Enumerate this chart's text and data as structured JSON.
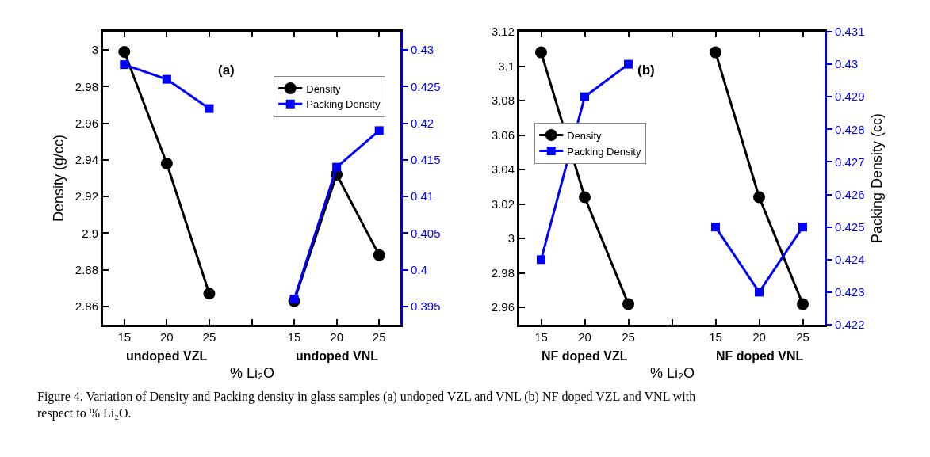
{
  "chart_data": [
    {
      "type": "line",
      "categories": [
        "15",
        "20",
        "25",
        null,
        "15",
        "20",
        "25"
      ],
      "xlabel": "% Li₂O",
      "ylabel": "Density (g/cc)",
      "ylim": [
        2.85,
        3.01
      ],
      "yticks": [
        2.86,
        2.88,
        2.9,
        2.92,
        2.94,
        2.96,
        2.98,
        3.0
      ],
      "y2lim": [
        0.3925,
        0.4325
      ],
      "y2ticks": [
        0.395,
        0.4,
        0.405,
        0.41,
        0.415,
        0.42,
        0.425,
        0.43
      ],
      "series": [
        {
          "name": "Density",
          "color": "#000000",
          "marker": "circle",
          "values": [
            2.999,
            2.938,
            2.867,
            null,
            2.863,
            2.932,
            2.888
          ]
        },
        {
          "name": "Packing Density",
          "color": "#0000ff",
          "marker": "square",
          "axis": "y2",
          "values": [
            0.428,
            0.426,
            0.422,
            null,
            0.396,
            0.414,
            0.419
          ]
        }
      ],
      "legend": "top right",
      "annotations": [
        "(a)",
        "undoped VZL",
        "undoped VNL"
      ]
    },
    {
      "type": "line",
      "categories": [
        "15",
        "20",
        "25",
        null,
        "15",
        "20",
        "25"
      ],
      "xlabel": "% Li₂O",
      "y2label": "Packing Density (cc)",
      "ylim": [
        2.95,
        3.12
      ],
      "yticks": [
        2.96,
        2.98,
        3.0,
        3.02,
        3.04,
        3.06,
        3.08,
        3.1,
        3.12
      ],
      "y2lim": [
        0.422,
        0.431
      ],
      "y2ticks": [
        0.422,
        0.423,
        0.424,
        0.425,
        0.426,
        0.427,
        0.428,
        0.429,
        0.43,
        0.431
      ],
      "series": [
        {
          "name": "Density",
          "color": "#000000",
          "marker": "circle",
          "values": [
            3.108,
            3.024,
            2.962,
            null,
            3.108,
            3.024,
            2.962
          ]
        },
        {
          "name": "Packing Density",
          "color": "#0000ff",
          "marker": "square",
          "axis": "y2",
          "values": [
            0.424,
            0.429,
            0.43,
            null,
            0.425,
            0.423,
            0.425
          ]
        }
      ],
      "legend": "left",
      "annotations": [
        "(b)",
        "NF doped VZL",
        "NF doped VNL",
        "Figure 4. Variation of Density and Packing density in glass samples (a) undoped VZL and VNL (b) NF doped VZL and VNL with respect to % Li₂O."
      ]
    }
  ]
}
